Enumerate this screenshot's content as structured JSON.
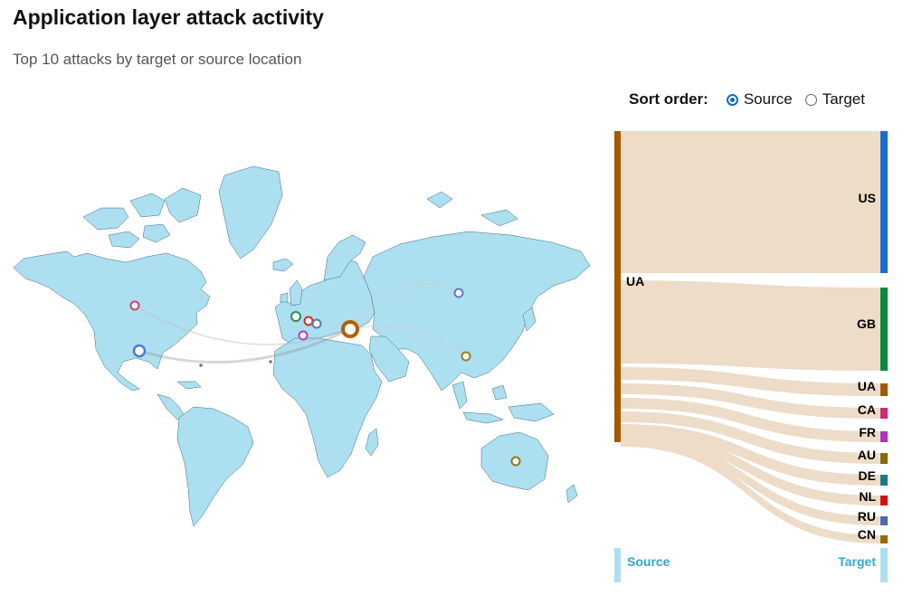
{
  "title": "Application layer attack activity",
  "subtitle": "Top 10 attacks by target or source location",
  "sort": {
    "label": "Sort order:",
    "options": [
      {
        "label": "Source",
        "selected": true
      },
      {
        "label": "Target",
        "selected": false
      }
    ]
  },
  "colors": {
    "land": "#acdff0",
    "flow": "#ecdcc8",
    "source_bar": "#a35a00",
    "footer_bar": "#acdff0",
    "footer_text": "#34a5cc"
  },
  "map_markers": [
    {
      "name": "US",
      "color": "#4a7bd4"
    },
    {
      "name": "CA",
      "color": "#cc3f7a"
    },
    {
      "name": "GB",
      "color": "#2f8a5a"
    },
    {
      "name": "NL",
      "color": "#cc2a2a"
    },
    {
      "name": "DE",
      "color": "#5a7aa8"
    },
    {
      "name": "FR",
      "color": "#b040c8"
    },
    {
      "name": "UA",
      "color": "#b06000"
    },
    {
      "name": "RU",
      "color": "#5a7ac0"
    },
    {
      "name": "CN",
      "color": "#9a7a20"
    },
    {
      "name": "AU",
      "color": "#8a7a20"
    }
  ],
  "sankey": {
    "source": "UA",
    "targets": [
      {
        "name": "US",
        "color": "#1a6ad0"
      },
      {
        "name": "GB",
        "color": "#0a8a40"
      },
      {
        "name": "UA",
        "color": "#a35a00"
      },
      {
        "name": "CA",
        "color": "#cc2a7a"
      },
      {
        "name": "FR",
        "color": "#b030c0"
      },
      {
        "name": "AU",
        "color": "#8a6a10"
      },
      {
        "name": "DE",
        "color": "#1a7a8a"
      },
      {
        "name": "NL",
        "color": "#d01010"
      },
      {
        "name": "RU",
        "color": "#4a6ab0"
      },
      {
        "name": "CN",
        "color": "#9a6a00"
      }
    ],
    "footer": {
      "source": "Source",
      "target": "Target"
    }
  }
}
